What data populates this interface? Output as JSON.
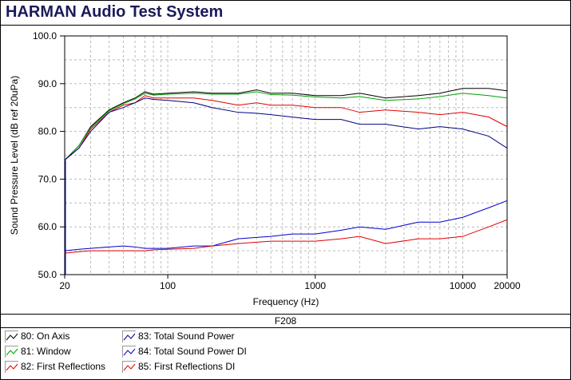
{
  "title": "HARMAN Audio Test System",
  "footer_code": "F208",
  "chart_data": {
    "type": "line",
    "xlabel": "Frequency (Hz)",
    "ylabel": "Sound Pressure Level (dB ref 20uPa)",
    "xscale": "log",
    "xlim": [
      20,
      20000
    ],
    "ylim": [
      50,
      100
    ],
    "yticks": [
      "50.0",
      "60.0",
      "70.0",
      "80.0",
      "90.0",
      "100.0"
    ],
    "xticks": [
      "20",
      "100",
      "1000",
      "10000",
      "20000"
    ],
    "grid": true,
    "x": [
      20,
      25,
      30,
      40,
      50,
      60,
      70,
      80,
      100,
      150,
      200,
      300,
      400,
      500,
      700,
      1000,
      1500,
      2000,
      3000,
      5000,
      7000,
      10000,
      15000,
      20000
    ],
    "series": [
      {
        "name": "80: On Axis",
        "color": "#000000",
        "values": [
          74,
          77,
          81,
          84.5,
          86,
          87,
          88.3,
          87.8,
          88,
          88.3,
          88,
          88,
          88.7,
          88,
          88,
          87.5,
          87.5,
          88,
          87,
          87.5,
          88,
          89,
          89,
          88.5
        ]
      },
      {
        "name": "81: Window",
        "color": "#00a000",
        "values": [
          74,
          77,
          80.8,
          84.3,
          85.8,
          86.8,
          88,
          87.6,
          87.8,
          88,
          87.8,
          87.8,
          88.3,
          87.7,
          87.6,
          87.2,
          87,
          87.3,
          86.5,
          86.8,
          87.3,
          88,
          87.5,
          87
        ]
      },
      {
        "name": "82: First Reflections",
        "color": "#e00000",
        "values": [
          74,
          76.5,
          80.5,
          84,
          85.5,
          86,
          87.5,
          87,
          87,
          87,
          86.5,
          85.5,
          86,
          85.5,
          85.5,
          85,
          85,
          84,
          84.5,
          84,
          83.5,
          84,
          83,
          81
        ]
      },
      {
        "name": "83: Total Sound Power",
        "color": "#000080",
        "values": [
          74,
          76.5,
          80,
          84,
          85,
          86,
          87,
          86.7,
          86.5,
          86,
          85,
          84,
          83.8,
          83.5,
          83,
          82.5,
          82.5,
          81.5,
          81.5,
          80.5,
          81,
          80.5,
          79,
          76.5
        ]
      },
      {
        "name": "84: Total Sound Power DI",
        "color": "#0000d0",
        "values": [
          55,
          55.3,
          55.5,
          55.8,
          56,
          55.8,
          55.5,
          55.5,
          55.5,
          56,
          56,
          57.5,
          57.8,
          58,
          58.5,
          58.5,
          59.3,
          60,
          59.5,
          61,
          61,
          62,
          64,
          65.5
        ]
      },
      {
        "name": "85: First Reflections DI",
        "color": "#e00000",
        "values": [
          54.5,
          54.8,
          55,
          55,
          55,
          55,
          55,
          55.2,
          55.3,
          55.5,
          56,
          56.5,
          56.8,
          57,
          57,
          57,
          57.5,
          58,
          56.5,
          57.5,
          57.5,
          58,
          60,
          61.5
        ]
      }
    ]
  }
}
